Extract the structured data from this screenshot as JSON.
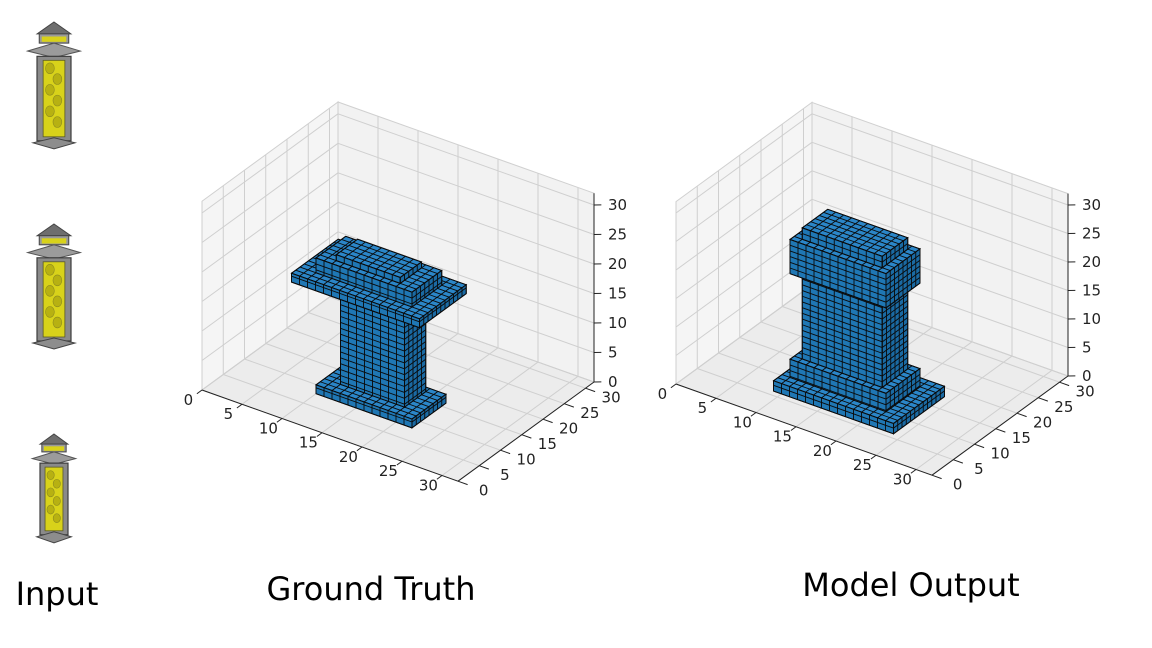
{
  "captions": {
    "input": "Input",
    "ground_truth": "Ground Truth",
    "model_output": "Model Output"
  },
  "input_views": [
    {
      "view": "top",
      "name": "lantern-view-front"
    },
    {
      "view": "side",
      "name": "lantern-view-side"
    },
    {
      "view": "low",
      "name": "lantern-view-low"
    }
  ],
  "colors": {
    "voxel_face": "#1f77b4",
    "voxel_edge": "#0a0a0a",
    "pane_fill": "#f2f2f2",
    "grid": "#cfcfcf",
    "lantern_gray": "#8a8a8a",
    "lantern_yellow": "#d8d21a"
  },
  "chart_data": [
    {
      "type": "voxel-3d",
      "title": "Ground Truth",
      "xlim": [
        0,
        32
      ],
      "ylim": [
        0,
        32
      ],
      "zlim": [
        0,
        32
      ],
      "xticks": [
        "0",
        "5",
        "10",
        "15",
        "20",
        "25",
        "30"
      ],
      "yticks": [
        "0",
        "5",
        "10",
        "15",
        "20",
        "25",
        "30"
      ],
      "zticks": [
        "0",
        "5",
        "10",
        "15",
        "20",
        "25",
        "30"
      ],
      "grid": true,
      "shape": "pillar with flat base, cap and square top"
    },
    {
      "type": "voxel-3d",
      "title": "Model Output",
      "xlim": [
        0,
        32
      ],
      "ylim": [
        0,
        32
      ],
      "zlim": [
        0,
        32
      ],
      "xticks": [
        "0",
        "5",
        "10",
        "15",
        "20",
        "25",
        "30"
      ],
      "yticks": [
        "0",
        "5",
        "10",
        "15",
        "20",
        "25",
        "30"
      ],
      "zticks": [
        "0",
        "5",
        "10",
        "15",
        "20",
        "25",
        "30"
      ],
      "grid": true,
      "shape": "irregular pillar with widened base and rounded top"
    }
  ]
}
